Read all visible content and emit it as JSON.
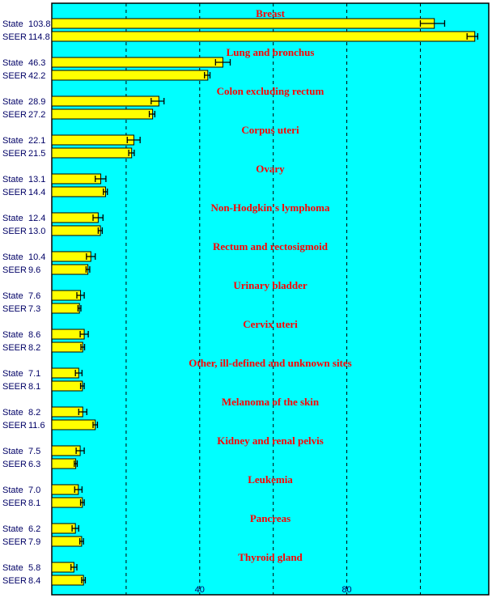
{
  "chart_data": {
    "type": "bar",
    "orientation": "horizontal",
    "xlim": [
      0,
      118.6
    ],
    "x_ticks": [
      40,
      80
    ],
    "gridlines": [
      20,
      40,
      60,
      80,
      100
    ],
    "grid": "vertical dashed",
    "colors": {
      "plot_bg": "#00ffff",
      "bar": "#ffff00",
      "title": "#ff0000",
      "label": "#000066"
    },
    "series_labels": [
      "State",
      "SEER"
    ],
    "categories": [
      {
        "name": "Breast",
        "state": 103.8,
        "seer": 114.8,
        "state_ci": [
          100.0,
          106.6
        ],
        "seer_ci": [
          112.7,
          115.6
        ]
      },
      {
        "name": "Lung and bronchus",
        "state": 46.3,
        "seer": 42.2,
        "state_ci": [
          44.3,
          48.3
        ],
        "seer_ci": [
          41.3,
          42.8
        ]
      },
      {
        "name": "Colon excluding rectum",
        "state": 28.9,
        "seer": 27.2,
        "state_ci": [
          26.8,
          30.3
        ],
        "seer_ci": [
          26.3,
          27.8
        ]
      },
      {
        "name": "Corpus uteri",
        "state": 22.1,
        "seer": 21.5,
        "state_ci": [
          20.3,
          23.8
        ],
        "seer_ci": [
          20.7,
          22.2
        ]
      },
      {
        "name": "Ovary",
        "state": 13.1,
        "seer": 14.4,
        "state_ci": [
          11.6,
          14.5
        ],
        "seer_ci": [
          13.8,
          14.9
        ]
      },
      {
        "name": "Non-Hodgkin's lymphoma",
        "state": 12.4,
        "seer": 13.0,
        "state_ci": [
          11.0,
          13.7
        ],
        "seer_ci": [
          12.4,
          13.5
        ]
      },
      {
        "name": "Rectum and rectosigmoid",
        "state": 10.4,
        "seer": 9.6,
        "state_ci": [
          9.2,
          11.6
        ],
        "seer_ci": [
          9.1,
          10.1
        ]
      },
      {
        "name": "Urinary bladder",
        "state": 7.6,
        "seer": 7.3,
        "state_ci": [
          6.6,
          8.6
        ],
        "seer_ci": [
          6.9,
          7.7
        ]
      },
      {
        "name": "Cervix uteri",
        "state": 8.6,
        "seer": 8.2,
        "state_ci": [
          7.5,
          9.7
        ],
        "seer_ci": [
          7.7,
          8.7
        ]
      },
      {
        "name": "Other, ill-defined and unknown sites",
        "state": 7.1,
        "seer": 8.1,
        "state_ci": [
          6.2,
          8.0
        ],
        "seer_ci": [
          7.6,
          8.6
        ]
      },
      {
        "name": "Melanoma of the skin",
        "state": 8.2,
        "seer": 11.6,
        "state_ci": [
          7.1,
          9.3
        ],
        "seer_ci": [
          11.0,
          12.2
        ]
      },
      {
        "name": "Kidney and renal pelvis",
        "state": 7.5,
        "seer": 6.3,
        "state_ci": [
          6.4,
          8.6
        ],
        "seer_ci": [
          5.9,
          6.7
        ]
      },
      {
        "name": "Leukemia",
        "state": 7.0,
        "seer": 8.1,
        "state_ci": [
          6.0,
          8.0
        ],
        "seer_ci": [
          7.6,
          8.6
        ]
      },
      {
        "name": "Pancreas",
        "state": 6.2,
        "seer": 7.9,
        "state_ci": [
          5.3,
          7.1
        ],
        "seer_ci": [
          7.4,
          8.4
        ]
      },
      {
        "name": "Thyroid gland",
        "state": 5.8,
        "seer": 8.4,
        "state_ci": [
          5.0,
          6.6
        ],
        "seer_ci": [
          7.9,
          8.9
        ]
      }
    ]
  }
}
